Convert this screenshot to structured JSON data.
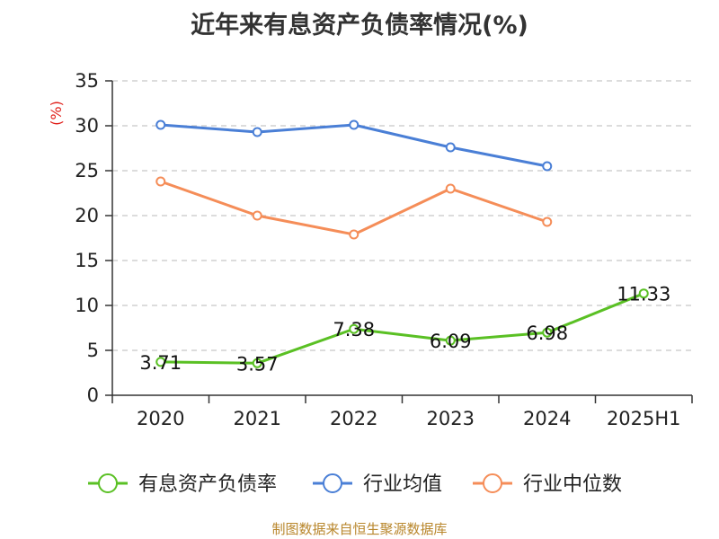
{
  "chart_data": {
    "type": "line",
    "title": "近年来有息资产负债率情况(%)",
    "ylabel": "(%)",
    "xlabel": "",
    "categories": [
      "2020",
      "2021",
      "2022",
      "2023",
      "2024",
      "2025H1"
    ],
    "ylim": [
      0,
      35
    ],
    "yticks": [
      0,
      5,
      10,
      15,
      20,
      25,
      30,
      35
    ],
    "grid": true,
    "legend_position": "bottom",
    "series": [
      {
        "name": "有息资产负债率",
        "color": "#5ac024",
        "values": [
          3.71,
          3.57,
          7.38,
          6.09,
          6.98,
          11.33
        ],
        "labels": [
          "3.71",
          "3.57",
          "7.38",
          "6.09",
          "6.98",
          "11.33"
        ]
      },
      {
        "name": "行业均值",
        "color": "#4a7fd6",
        "values": [
          30.1,
          29.3,
          30.1,
          27.6,
          25.5,
          null
        ]
      },
      {
        "name": "行业中位数",
        "color": "#f58d58",
        "values": [
          23.8,
          20.0,
          17.9,
          23.0,
          19.3,
          null
        ]
      }
    ]
  },
  "source_note": "制图数据来自恒生聚源数据库"
}
